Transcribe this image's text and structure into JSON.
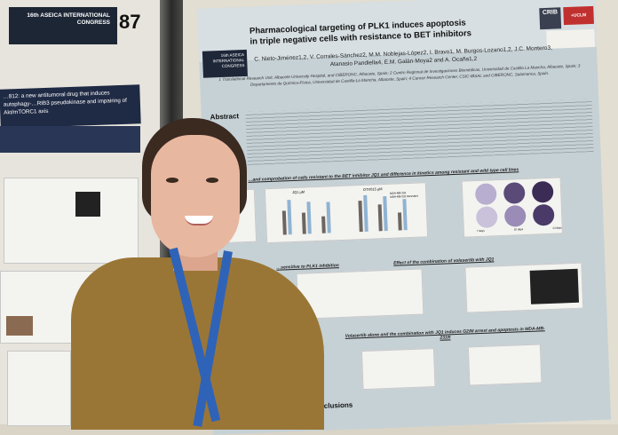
{
  "scene": {
    "description_colors": {
      "wall": "#d9d4c6",
      "poster": "#c6d1d6",
      "sweater": "#9a7636",
      "lanyard": "#2f63b8",
      "hair": "#3a2a20"
    }
  },
  "left_poster": {
    "congress": "16th ASEICA INTERNATIONAL CONGRESS",
    "number": "87",
    "title": "…812: a new antitumoral drug that induces autophagy-…RIB3 pseudokinase and impairing of Akt/mTORC1 axis"
  },
  "poster": {
    "congress_badge": "16th ASEICA INTERNATIONAL CONGRESS",
    "logo_crib": "CRIB",
    "logo_uclm": "+UCLM",
    "title_line1": "Pharmacological targeting of PLK1 induces apoptosis",
    "title_line2": "in triple negative cells with resistance to BET inhibitors",
    "authors": "C. Nieto-Jiménez1,2, V. Corrales-Sánchez2, M.M. Noblejas-López2, I. Bravo1, M. Burgos-Lozano1,2, J.C. Montero3, Atanasio Pandiella4, E.M. Galán-Moya2 and A. Ocaña1,2",
    "affiliations": "1 Translational Research Unit, Albacete University Hospital, and CIBERONC, Albacete, Spain; 2 Centro Regional de Investigaciones Biomédicas, Universidad de Castilla La Mancha, Albacete, Spain; 3 Departamento de Química-Física, Universidad de Castilla-La Mancha, Albacete, Spain; 4 Cancer Research Center, CSIC-IBSAL and CIBERONC, Salamanca, Spain.",
    "abstract_heading": "Abstract",
    "section1": "…and comprobation of cells resistant to the BET inhibitor JQ1 and difference in kinetics among resistant and wild type cell lines",
    "chart1_title": "JQ1 µM",
    "chart2_title": "OTX015 µM",
    "legend": [
      "MDA-MB-231",
      "MDA-MB-231 Resistant"
    ],
    "colony_days": [
      "7 days",
      "10 days",
      "14 days"
    ],
    "section2_left": "…sensitive to PLK1 inhibition",
    "section2_right": "Effect of the combination of volasertib with JQ1",
    "section3": "Volasertib alone and the combination with JQ1 induces G2/M arrest and apoptosis in MDA-MB-231R",
    "conclusions_heading": "Conclusions"
  }
}
